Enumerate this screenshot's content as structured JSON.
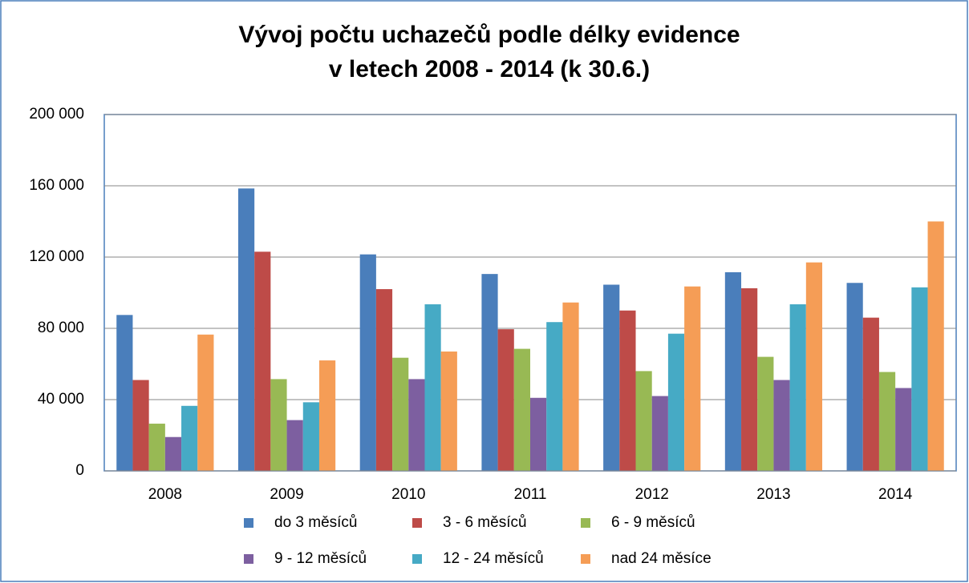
{
  "chart_data": {
    "type": "bar",
    "title": "Vývoj počtu uchazečů podle délky evidence",
    "subtitle": "v letech 2008 - 2014 (k 30.6.)",
    "categories": [
      "2008",
      "2009",
      "2010",
      "2011",
      "2012",
      "2013",
      "2014"
    ],
    "series": [
      {
        "name": "do 3 měsíců",
        "color": "#4a7ebb",
        "values": [
          87500,
          158500,
          121500,
          110500,
          104500,
          111500,
          105500
        ]
      },
      {
        "name": "3 - 6 měsíců",
        "color": "#be4b48",
        "values": [
          51000,
          123000,
          102000,
          79500,
          90000,
          102500,
          86000
        ]
      },
      {
        "name": "6 - 9 měsíců",
        "color": "#98b954",
        "values": [
          26500,
          51500,
          63500,
          68500,
          56000,
          64000,
          55500
        ]
      },
      {
        "name": "9 - 12 měsíců",
        "color": "#7d5fa0",
        "values": [
          19000,
          28500,
          51500,
          41000,
          42000,
          51000,
          46500
        ]
      },
      {
        "name": "12 - 24 měsíců",
        "color": "#46aac5",
        "values": [
          36500,
          38500,
          93500,
          83500,
          77000,
          93500,
          103000
        ]
      },
      {
        "name": "nad 24 měsíce",
        "color": "#f59d56",
        "values": [
          76500,
          62000,
          67000,
          94500,
          103500,
          117000,
          140000
        ]
      }
    ],
    "ylim": [
      0,
      200000
    ],
    "yticks": [
      0,
      {
        "value": 40000,
        "label": "40 000"
      },
      {
        "value": 80000,
        "label": "80 000"
      },
      {
        "value": 120000,
        "label": "120 000"
      },
      {
        "value": 160000,
        "label": "160 000"
      },
      {
        "value": 200000,
        "label": "200 000"
      }
    ],
    "grid": true,
    "legend": "bottom"
  }
}
